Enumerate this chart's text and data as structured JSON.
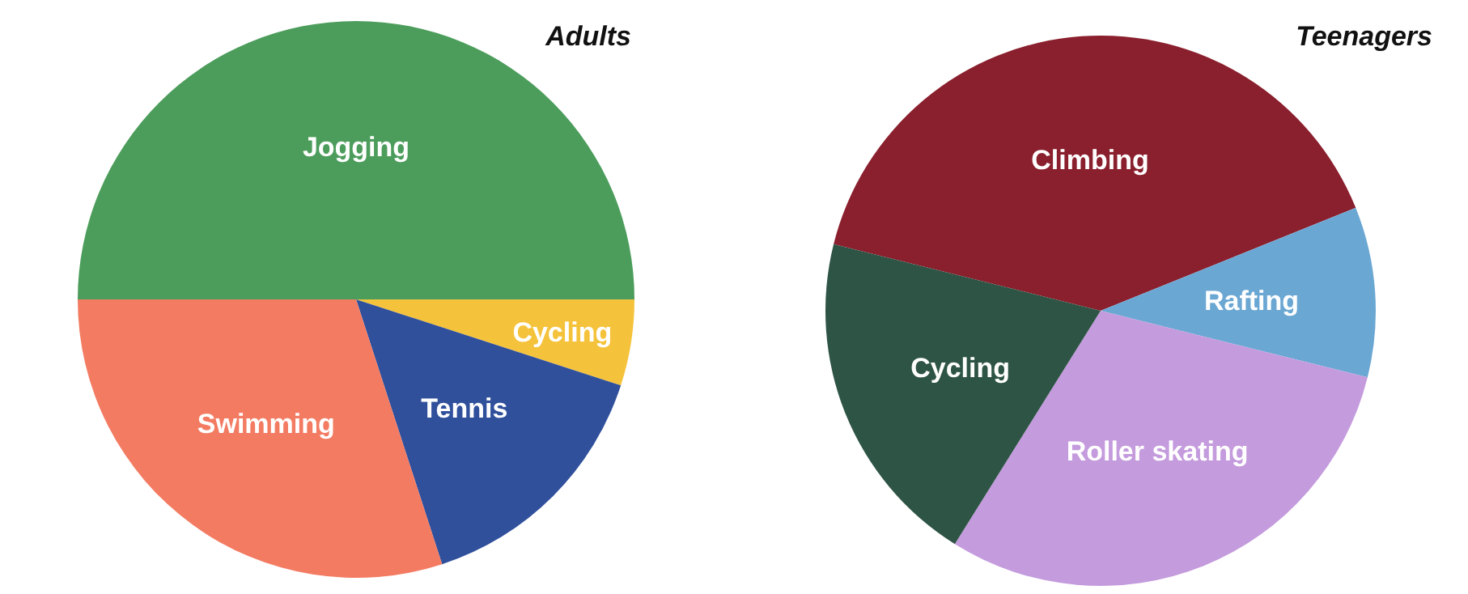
{
  "chart_data": [
    {
      "type": "pie",
      "title": "Adults",
      "categories": [
        "Jogging",
        "Cycling",
        "Tennis",
        "Swimming"
      ],
      "values": [
        50,
        5,
        15,
        30
      ],
      "colors": [
        "#4c9d5b",
        "#f5c33b",
        "#30509c",
        "#f37b62"
      ]
    },
    {
      "type": "pie",
      "title": "Teenagers",
      "categories": [
        "Climbing",
        "Rafting",
        "Roller skating",
        "Cycling"
      ],
      "values": [
        40,
        10,
        30,
        20
      ],
      "colors": [
        "#8a1f2d",
        "#6ba7d3",
        "#c49bdd",
        "#2e5445"
      ]
    }
  ]
}
